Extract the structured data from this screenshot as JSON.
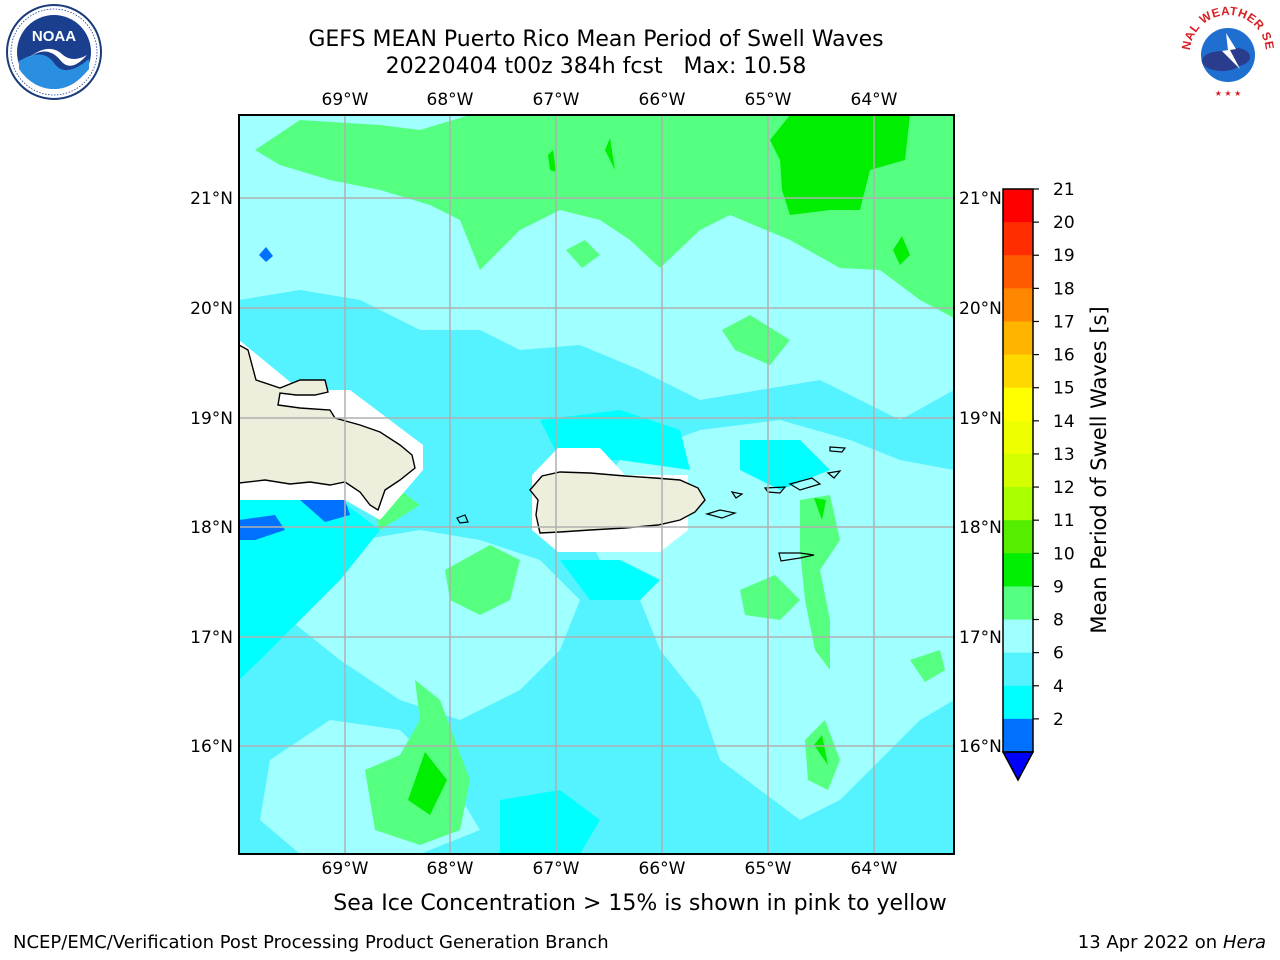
{
  "title": {
    "line1": "GEFS MEAN Puerto Rico Mean Period of Swell Waves",
    "line2": "20220404 t00z 384h fcst   Max: 10.58"
  },
  "map": {
    "lon_ticks": [
      "69°W",
      "68°W",
      "67°W",
      "66°W",
      "65°W",
      "64°W"
    ],
    "lat_ticks": [
      "21°N",
      "20°N",
      "19°N",
      "18°N",
      "17°N",
      "16°N"
    ],
    "colors": {
      "land": "#eeeedd",
      "nodata": "#ffffff",
      "grid": "#b0b0b0",
      "c2_4": "#0070ff",
      "c4_6": "#00ffff",
      "c6_8": "#55f3ff",
      "c8_9": "#a0ffff",
      "c9_10": "#55ff80",
      "c10_11": "#00ee00"
    }
  },
  "colorbar": {
    "label": "Mean Period of Swell Waves [s]",
    "levels": [
      "21",
      "20",
      "19",
      "18",
      "17",
      "16",
      "15",
      "14",
      "13",
      "12",
      "11",
      "10",
      "9",
      "8",
      "6",
      "4",
      "2"
    ],
    "colors_top_to_bottom": [
      "#ff0000",
      "#ff2d00",
      "#ff5a00",
      "#ff8700",
      "#ffb400",
      "#ffd800",
      "#ffff00",
      "#eeff00",
      "#d4ff00",
      "#aaff00",
      "#55ee00",
      "#00ee00",
      "#55ff80",
      "#a0ffff",
      "#55f3ff",
      "#00ffff",
      "#0070ff"
    ],
    "under_color": "#0000ff"
  },
  "note": "Sea Ice Concentration > 15% is shown in pink to yellow",
  "footer": {
    "left": "NCEP/EMC/Verification Post Processing Product Generation Branch",
    "date": "13 Apr 2022 on ",
    "machine": "Hera"
  },
  "logos": {
    "noaa_text": "NOAA",
    "nws_text": "NATIONAL WEATHER SERVICE"
  }
}
